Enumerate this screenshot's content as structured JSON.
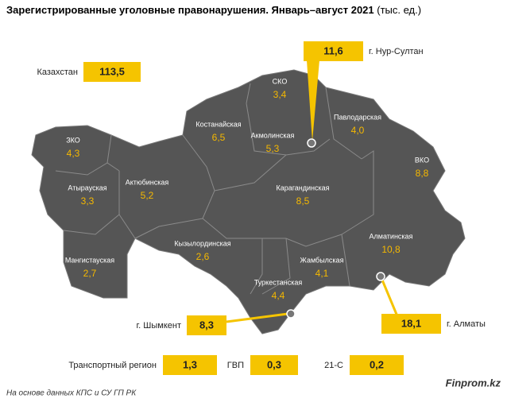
{
  "header": {
    "title": "Зарегистрированные уголовные правонарушения. Январь–август 2021",
    "unit": "(тыс. ед.)"
  },
  "total": {
    "label": "Казахстан",
    "value": "113,5"
  },
  "regions": [
    {
      "name": "ЗКО",
      "value": "4,3"
    },
    {
      "name": "Атырауская",
      "value": "3,3"
    },
    {
      "name": "Мангистауская",
      "value": "2,7"
    },
    {
      "name": "Актюбинская",
      "value": "5,2"
    },
    {
      "name": "Костанайская",
      "value": "6,5"
    },
    {
      "name": "СКО",
      "value": "3,4"
    },
    {
      "name": "Акмолинская",
      "value": "5,3"
    },
    {
      "name": "Павлодарская",
      "value": "4,0"
    },
    {
      "name": "ВКО",
      "value": "8,8"
    },
    {
      "name": "Карагандинская",
      "value": "8,5"
    },
    {
      "name": "Кызылординская",
      "value": "2,6"
    },
    {
      "name": "Туркестанская",
      "value": "4,4"
    },
    {
      "name": "Жамбылская",
      "value": "4,1"
    },
    {
      "name": "Алматинская",
      "value": "10,8"
    }
  ],
  "cities": [
    {
      "name": "г. Нур-Султан",
      "value": "11,6"
    },
    {
      "name": "г. Шымкент",
      "value": "8,3"
    },
    {
      "name": "г. Алматы",
      "value": "18,1"
    }
  ],
  "other": [
    {
      "name": "Транспортный регион",
      "value": "1,3"
    },
    {
      "name": "ГВП",
      "value": "0,3"
    },
    {
      "name": "21-С",
      "value": "0,2"
    }
  ],
  "footer": {
    "source": "На основе данных КПС и СУ ГП РК",
    "brand": "Finprom.kz"
  }
}
